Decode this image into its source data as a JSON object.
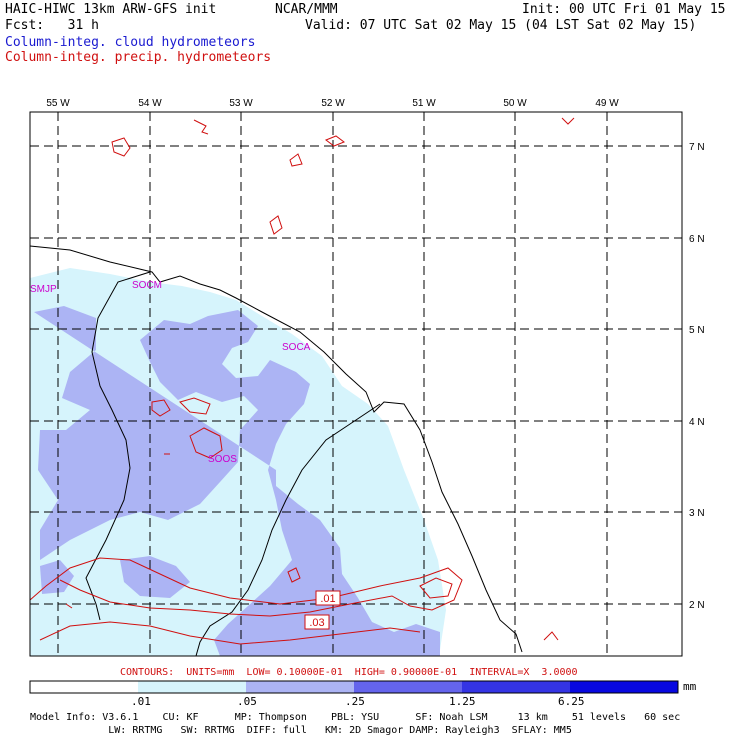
{
  "header": {
    "model_title": "HAIC-HIWC 13km ARW-GFS init",
    "org": "NCAR/MMM",
    "init": "Init: 00 UTC Fri 01 May 15",
    "fcst": "Fcst:   31 h",
    "valid": "Valid: 07 UTC Sat 02 May 15 (04 LST Sat 02 May 15)",
    "field_cloud": "Column-integ. cloud hydrometeors",
    "field_precip": "Column-integ. precip. hydrometeors"
  },
  "map": {
    "lon_labels": [
      "55 W",
      "54 W",
      "53 W",
      "52 W",
      "51 W",
      "50 W",
      "49 W"
    ],
    "lat_labels": [
      "7 N",
      "6 N",
      "5 N",
      "4 N",
      "3 N",
      "2 N"
    ],
    "stations": [
      "SMJP",
      "SOCM",
      "SOCA",
      "SOOS"
    ],
    "contour_labels": [
      ".01",
      ".03"
    ]
  },
  "contours_info": "CONTOURS:  UNITS=mm  LOW= 0.10000E-01  HIGH= 0.90000E-01  INTERVAL=X  3.0000",
  "scale": {
    "ticks": [
      ".01",
      ".05",
      ".25",
      "1.25",
      "6.25"
    ],
    "units": "mm",
    "colors": [
      "#ffffff",
      "#d6f4fc",
      "#acb4f4",
      "#6464ec",
      "#3434e4",
      "#0808e0"
    ]
  },
  "footer": {
    "line1": "Model Info: V3.6.1    CU: KF      MP: Thompson    PBL: YSU      SF: Noah LSM     13 km    51 levels   60 sec",
    "line2": "             LW: RRTMG   SW: RRTMG  DIFF: full   KM: 2D Smagor DAMP: Rayleigh3  SFLAY: MM5"
  },
  "colors": {
    "cloud_text": "#1a1ad0",
    "precip_contour": "#d01010",
    "station": "#cc00cc"
  }
}
